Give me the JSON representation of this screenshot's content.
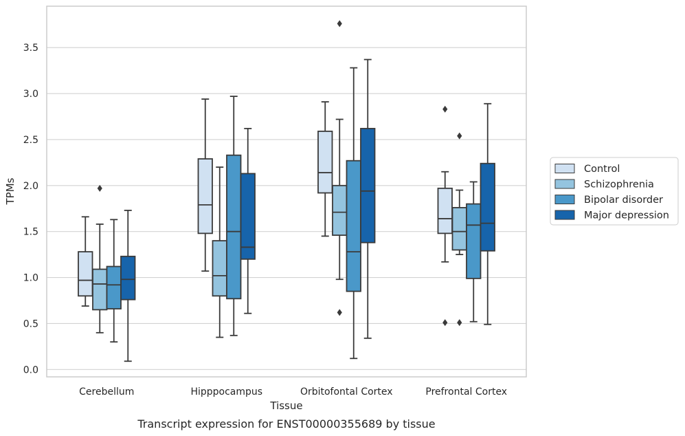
{
  "caption": "Transcript expression for ENST00000355689 by tissue",
  "chart_data": {
    "type": "box",
    "xlabel": "Tissue",
    "ylabel": "TPMs",
    "ylim": [
      -0.08,
      3.95
    ],
    "yticks": [
      "0.0",
      "0.5",
      "1.0",
      "1.5",
      "2.0",
      "2.5",
      "3.0",
      "3.5"
    ],
    "grid": "horizontal",
    "legend_position": "right",
    "categories": [
      "Cerebellum",
      "Hipppocampus",
      "Orbitofontal Cortex",
      "Prefrontal Cortex"
    ],
    "series": [
      {
        "name": "Control",
        "color": "#d0e1f2",
        "boxes": [
          {
            "whislo": 0.69,
            "q1": 0.8,
            "med": 0.97,
            "q3": 1.28,
            "whishi": 1.66,
            "fliers": []
          },
          {
            "whislo": 1.07,
            "q1": 1.48,
            "med": 1.79,
            "q3": 2.29,
            "whishi": 2.94,
            "fliers": []
          },
          {
            "whislo": 1.45,
            "q1": 1.92,
            "med": 2.14,
            "q3": 2.59,
            "whishi": 2.91,
            "fliers": []
          },
          {
            "whislo": 1.17,
            "q1": 1.48,
            "med": 1.64,
            "q3": 1.97,
            "whishi": 2.15,
            "fliers": [
              2.83,
              0.51
            ]
          }
        ]
      },
      {
        "name": "Schizophrenia",
        "color": "#94c4df",
        "boxes": [
          {
            "whislo": 0.4,
            "q1": 0.65,
            "med": 0.93,
            "q3": 1.09,
            "whishi": 1.58,
            "fliers": [
              1.97
            ]
          },
          {
            "whislo": 0.35,
            "q1": 0.8,
            "med": 1.02,
            "q3": 1.4,
            "whishi": 2.2,
            "fliers": []
          },
          {
            "whislo": 0.98,
            "q1": 1.46,
            "med": 1.71,
            "q3": 2.0,
            "whishi": 2.72,
            "fliers": [
              3.76,
              0.62
            ]
          },
          {
            "whislo": 1.25,
            "q1": 1.3,
            "med": 1.5,
            "q3": 1.76,
            "whishi": 1.95,
            "fliers": [
              2.54,
              0.51
            ]
          }
        ]
      },
      {
        "name": "Bipolar disorder",
        "color": "#4a98c9",
        "boxes": [
          {
            "whislo": 0.3,
            "q1": 0.66,
            "med": 0.92,
            "q3": 1.12,
            "whishi": 1.63,
            "fliers": []
          },
          {
            "whislo": 0.37,
            "q1": 0.77,
            "med": 1.5,
            "q3": 2.33,
            "whishi": 2.97,
            "fliers": []
          },
          {
            "whislo": 0.12,
            "q1": 0.85,
            "med": 1.28,
            "q3": 2.27,
            "whishi": 3.28,
            "fliers": []
          },
          {
            "whislo": 0.52,
            "q1": 0.99,
            "med": 1.57,
            "q3": 1.8,
            "whishi": 2.04,
            "fliers": []
          }
        ]
      },
      {
        "name": "Major depression",
        "color": "#1764ab",
        "boxes": [
          {
            "whislo": 0.09,
            "q1": 0.76,
            "med": 0.98,
            "q3": 1.23,
            "whishi": 1.73,
            "fliers": []
          },
          {
            "whislo": 0.61,
            "q1": 1.2,
            "med": 1.33,
            "q3": 2.13,
            "whishi": 2.62,
            "fliers": []
          },
          {
            "whislo": 0.34,
            "q1": 1.38,
            "med": 1.94,
            "q3": 2.62,
            "whishi": 3.37,
            "fliers": []
          },
          {
            "whislo": 0.49,
            "q1": 1.29,
            "med": 1.59,
            "q3": 2.24,
            "whishi": 2.89,
            "fliers": []
          }
        ]
      }
    ]
  }
}
